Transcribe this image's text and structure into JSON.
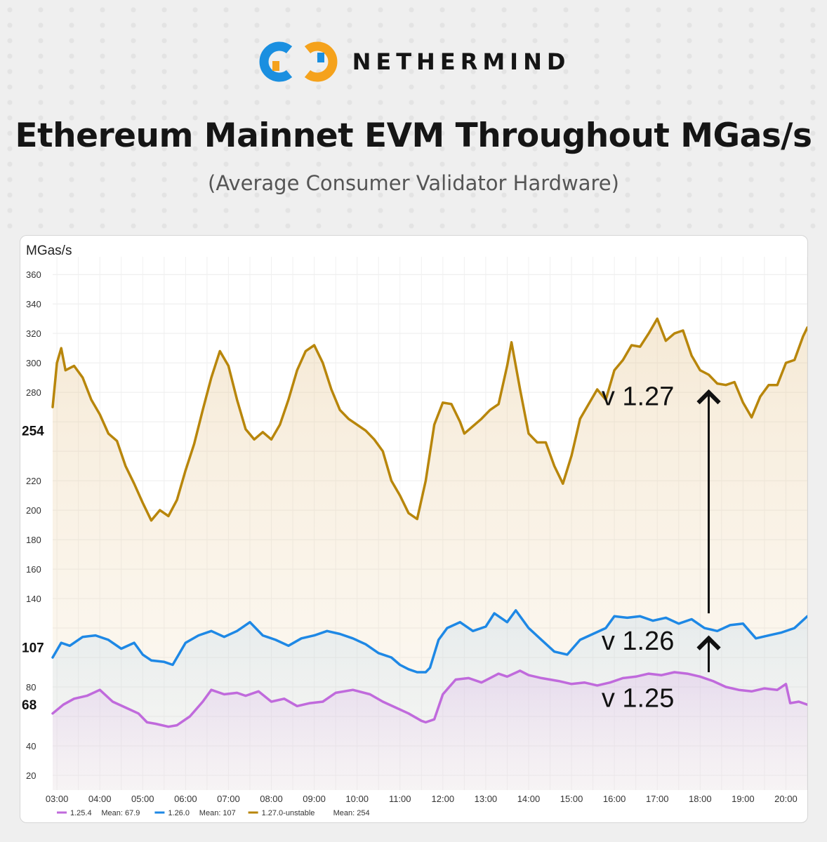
{
  "brand": {
    "name": "NETHERMIND",
    "logo_icon": "nethermind-logo-icon",
    "colors": {
      "blue": "#1a8fe0",
      "orange": "#f5a21c"
    }
  },
  "header": {
    "title": "Ethereum Mainnet EVM Throughout MGas/s",
    "subtitle": "(Average Consumer Validator Hardware)"
  },
  "chart_data": {
    "type": "line",
    "ylabel": "MGas/s",
    "ylim": [
      10,
      372
    ],
    "yticks": [
      20,
      40,
      60,
      80,
      100,
      120,
      140,
      160,
      180,
      200,
      220,
      240,
      260,
      280,
      300,
      320,
      340,
      360
    ],
    "ytick_labels": [
      "20",
      "40",
      "",
      "80",
      "",
      "",
      "140",
      "160",
      "180",
      "200",
      "220",
      "",
      "",
      "280",
      "300",
      "320",
      "340",
      "360"
    ],
    "xlim": [
      2.9,
      20.5
    ],
    "x_ticks": [
      3,
      4,
      5,
      6,
      7,
      8,
      9,
      10,
      11,
      12,
      13,
      14,
      15,
      16,
      17,
      18,
      19,
      20
    ],
    "x_tick_labels": [
      "03:00",
      "04:00",
      "05:00",
      "06:00",
      "07:00",
      "08:00",
      "09:00",
      "10:00",
      "11:00",
      "12:00",
      "13:00",
      "14:00",
      "15:00",
      "16:00",
      "17:00",
      "18:00",
      "19:00",
      "20:00"
    ],
    "x_unit": "hour of day",
    "grid": true,
    "legend_position": "bottom-left",
    "series": [
      {
        "name": "1.25.4",
        "mean_label": "Mean: 67.9",
        "color": "#c06adc",
        "x": [
          2.9,
          3.15,
          3.4,
          3.7,
          4.0,
          4.3,
          4.6,
          4.9,
          5.1,
          5.3,
          5.6,
          5.8,
          6.1,
          6.4,
          6.6,
          6.9,
          7.2,
          7.4,
          7.7,
          8.0,
          8.3,
          8.6,
          8.9,
          9.2,
          9.5,
          9.9,
          10.3,
          10.6,
          10.9,
          11.2,
          11.5,
          11.6,
          11.8,
          12.0,
          12.3,
          12.6,
          12.9,
          13.1,
          13.3,
          13.5,
          13.8,
          14.0,
          14.3,
          14.7,
          15.0,
          15.3,
          15.6,
          15.9,
          16.2,
          16.5,
          16.8,
          17.1,
          17.4,
          17.7,
          18.0,
          18.3,
          18.6,
          18.9,
          19.2,
          19.5,
          19.8,
          20.0,
          20.1,
          20.3,
          20.5
        ],
        "values": [
          62,
          68,
          72,
          74,
          78,
          70,
          66,
          62,
          56,
          55,
          53,
          54,
          60,
          70,
          78,
          75,
          76,
          74,
          77,
          70,
          72,
          67,
          69,
          70,
          76,
          78,
          75,
          70,
          66,
          62,
          57,
          56,
          58,
          75,
          85,
          86,
          83,
          86,
          89,
          87,
          91,
          88,
          86,
          84,
          82,
          83,
          81,
          83,
          86,
          87,
          89,
          88,
          90,
          89,
          87,
          84,
          80,
          78,
          77,
          79,
          78,
          82,
          69,
          70,
          68
        ]
      },
      {
        "name": "1.26.0",
        "mean_label": "Mean: 107",
        "color": "#1e88e5",
        "x": [
          2.9,
          3.1,
          3.3,
          3.6,
          3.9,
          4.2,
          4.5,
          4.8,
          5.0,
          5.2,
          5.5,
          5.7,
          6.0,
          6.3,
          6.6,
          6.9,
          7.2,
          7.5,
          7.8,
          8.1,
          8.4,
          8.7,
          9.0,
          9.3,
          9.6,
          9.9,
          10.2,
          10.5,
          10.8,
          11.0,
          11.2,
          11.4,
          11.6,
          11.7,
          11.9,
          12.1,
          12.4,
          12.7,
          13.0,
          13.2,
          13.5,
          13.7,
          14.0,
          14.3,
          14.6,
          14.9,
          15.2,
          15.5,
          15.8,
          16.0,
          16.3,
          16.6,
          16.9,
          17.2,
          17.5,
          17.8,
          18.1,
          18.4,
          18.7,
          19.0,
          19.3,
          19.6,
          19.9,
          20.2,
          20.5
        ],
        "values": [
          100,
          110,
          108,
          114,
          115,
          112,
          106,
          110,
          102,
          98,
          97,
          95,
          110,
          115,
          118,
          114,
          118,
          124,
          115,
          112,
          108,
          113,
          115,
          118,
          116,
          113,
          109,
          103,
          100,
          95,
          92,
          90,
          90,
          93,
          112,
          120,
          124,
          118,
          121,
          130,
          124,
          132,
          120,
          112,
          104,
          102,
          112,
          116,
          120,
          128,
          127,
          128,
          125,
          127,
          123,
          126,
          120,
          118,
          122,
          123,
          113,
          115,
          117,
          120,
          128
        ]
      },
      {
        "name": "1.27.0-unstable",
        "mean_label": "Mean: 254",
        "color": "#b8860b",
        "x": [
          2.9,
          3.0,
          3.1,
          3.2,
          3.4,
          3.6,
          3.8,
          4.0,
          4.2,
          4.4,
          4.6,
          4.8,
          5.0,
          5.2,
          5.4,
          5.6,
          5.8,
          6.0,
          6.2,
          6.4,
          6.6,
          6.8,
          7.0,
          7.2,
          7.4,
          7.6,
          7.8,
          8.0,
          8.2,
          8.4,
          8.6,
          8.8,
          9.0,
          9.2,
          9.4,
          9.6,
          9.8,
          10.0,
          10.2,
          10.4,
          10.6,
          10.8,
          11.0,
          11.2,
          11.4,
          11.6,
          11.8,
          12.0,
          12.2,
          12.4,
          12.5,
          12.7,
          12.9,
          13.1,
          13.3,
          13.5,
          13.6,
          13.8,
          14.0,
          14.2,
          14.4,
          14.6,
          14.8,
          15.0,
          15.2,
          15.4,
          15.6,
          15.8,
          16.0,
          16.2,
          16.4,
          16.6,
          16.8,
          17.0,
          17.2,
          17.4,
          17.6,
          17.8,
          18.0,
          18.2,
          18.4,
          18.6,
          18.8,
          19.0,
          19.2,
          19.4,
          19.6,
          19.8,
          20.0,
          20.2,
          20.4,
          20.5
        ],
        "values": [
          270,
          300,
          310,
          295,
          298,
          290,
          275,
          265,
          252,
          247,
          230,
          218,
          205,
          193,
          200,
          196,
          207,
          227,
          245,
          268,
          290,
          308,
          298,
          275,
          255,
          248,
          253,
          248,
          258,
          275,
          295,
          308,
          312,
          300,
          282,
          268,
          262,
          258,
          254,
          248,
          240,
          220,
          210,
          198,
          194,
          220,
          258,
          273,
          272,
          260,
          252,
          257,
          262,
          268,
          272,
          298,
          314,
          282,
          252,
          246,
          246,
          230,
          218,
          237,
          262,
          272,
          282,
          275,
          295,
          302,
          312,
          311,
          320,
          330,
          315,
          320,
          322,
          305,
          295,
          292,
          286,
          285,
          287,
          273,
          263,
          277,
          285,
          285,
          300,
          302,
          318,
          324
        ]
      }
    ],
    "mean_markers": [
      {
        "value": 254,
        "label": "254"
      },
      {
        "value": 107,
        "label": "107"
      },
      {
        "value": 68,
        "label": "68"
      }
    ],
    "annotations": [
      {
        "text": "v 1.27",
        "series": "1.27.0-unstable"
      },
      {
        "text": "v 1.26",
        "series": "1.26.0"
      },
      {
        "text": "v 1.25",
        "series": "1.25.4"
      }
    ],
    "arrows": [
      {
        "x": 18.2,
        "from": 130,
        "to": 280
      },
      {
        "x": 18.2,
        "from": 90,
        "to": 113
      }
    ]
  }
}
